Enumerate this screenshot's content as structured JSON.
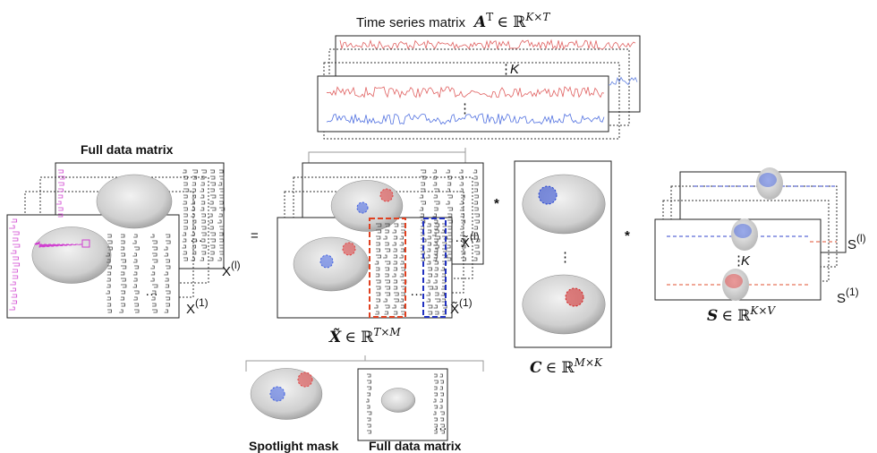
{
  "time_series": {
    "title": "Time series matrix",
    "symbol": "A",
    "symbol_sup": "T",
    "space": "∈ ℝ",
    "space_sup": "K×T",
    "k": "K",
    "dots": "⋮"
  },
  "full_data": {
    "title": "Full data matrix",
    "base": "X",
    "last_sup": "(l)",
    "first_sup": "(1)",
    "ellipsis": "…"
  },
  "equals": "=",
  "x_tilde": {
    "base": "X̃",
    "last_sup": "(l)",
    "first_sup": "(1)",
    "symbol": "X̃",
    "space": "∈ ℝ",
    "space_sup": "T×M",
    "ellipsis": "…"
  },
  "times": "*",
  "c_matrix": {
    "symbol": "C",
    "space": "∈ ℝ",
    "space_sup": "M×K",
    "dots": "⋮"
  },
  "s_matrix": {
    "base": "S",
    "last_sup": "(l)",
    "first_sup": "(1)",
    "k": "K",
    "dots": "⋮",
    "symbol": "S",
    "space": "∈ ℝ",
    "space_sup": "K×V"
  },
  "legend": {
    "spotlight": "Spotlight mask",
    "full_data": "Full data matrix"
  }
}
